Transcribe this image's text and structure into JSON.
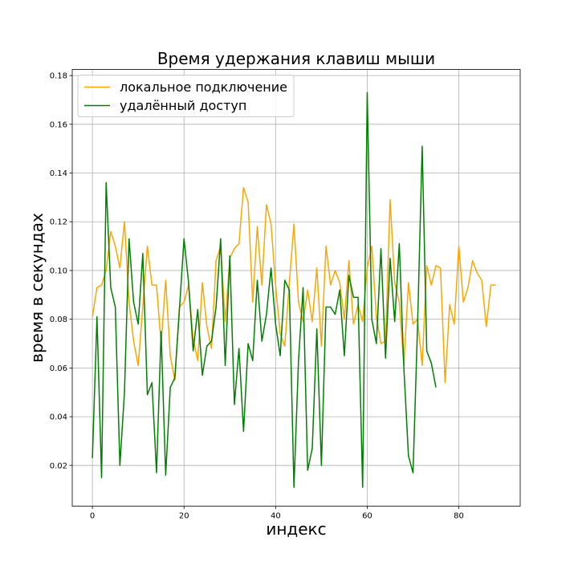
{
  "chart_data": {
    "type": "line",
    "title": "Время удержания клавиш мыши",
    "xlabel": "индекс",
    "ylabel": "время в секундах",
    "xlim": [
      -4.4,
      93.4
    ],
    "ylim": [
      0.0033,
      0.1825
    ],
    "xticks": [
      0,
      20,
      40,
      60,
      80
    ],
    "yticks": [
      0.02,
      0.04,
      0.06,
      0.08,
      0.1,
      0.12,
      0.14,
      0.16,
      0.18
    ],
    "grid": true,
    "legend_position": "upper-left",
    "series": [
      {
        "name": "локальное подключение",
        "color": "#ffa500",
        "values": [
          0.081,
          0.093,
          0.094,
          0.1,
          0.116,
          0.11,
          0.101,
          0.12,
          0.087,
          0.071,
          0.061,
          0.085,
          0.11,
          0.094,
          0.094,
          0.07,
          0.096,
          0.065,
          0.055,
          0.085,
          0.087,
          0.094,
          0.072,
          0.063,
          0.095,
          0.077,
          0.068,
          0.104,
          0.11,
          0.079,
          0.105,
          0.109,
          0.111,
          0.134,
          0.128,
          0.087,
          0.118,
          0.094,
          0.127,
          0.119,
          0.094,
          0.074,
          0.069,
          0.095,
          0.119,
          0.087,
          0.079,
          0.092,
          0.079,
          0.101,
          0.069,
          0.11,
          0.094,
          0.1,
          0.095,
          0.08,
          0.104,
          0.078,
          0.086,
          0.079,
          0.101,
          0.11,
          0.081,
          0.07,
          0.071,
          0.129,
          0.095,
          0.087,
          0.061,
          0.095,
          0.078,
          0.08,
          0.061,
          0.102,
          0.094,
          0.102,
          0.101,
          0.054,
          0.086,
          0.078,
          0.11,
          0.087,
          0.093,
          0.104,
          0.099,
          0.096,
          0.077,
          0.094,
          0.094
        ]
      },
      {
        "name": "удалённый доступ",
        "color": "#008000",
        "values": [
          0.023,
          0.081,
          0.015,
          0.136,
          0.093,
          0.085,
          0.02,
          0.05,
          0.113,
          0.087,
          0.078,
          0.107,
          0.049,
          0.054,
          0.017,
          0.075,
          0.016,
          0.052,
          0.056,
          0.084,
          0.113,
          0.095,
          0.067,
          0.084,
          0.057,
          0.069,
          0.071,
          0.085,
          0.113,
          0.061,
          0.106,
          0.045,
          0.068,
          0.034,
          0.07,
          0.063,
          0.096,
          0.071,
          0.082,
          0.101,
          0.078,
          0.065,
          0.096,
          0.092,
          0.011,
          0.063,
          0.093,
          0.018,
          0.027,
          0.076,
          0.02,
          0.085,
          0.085,
          0.082,
          0.092,
          0.065,
          0.098,
          0.089,
          0.089,
          0.011,
          0.173,
          0.08,
          0.07,
          0.109,
          0.064,
          0.105,
          0.079,
          0.111,
          0.06,
          0.024,
          0.017,
          0.078,
          0.151,
          0.067,
          0.062,
          0.052
        ]
      }
    ]
  }
}
